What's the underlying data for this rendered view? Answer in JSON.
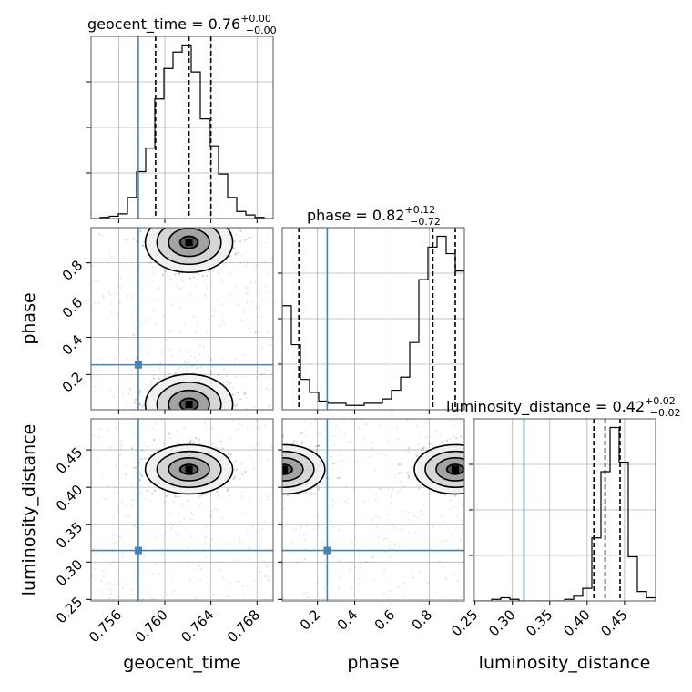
{
  "chart_data": {
    "type": "corner",
    "parameters": [
      "geocent_time",
      "phase",
      "luminosity_distance"
    ],
    "xlabels": [
      "geocent_time",
      "phase",
      "luminosity_distance"
    ],
    "ylabels": [
      "phase",
      "luminosity_distance"
    ],
    "titles": [
      {
        "param": "geocent_time",
        "text": "geocent_time = 0.76",
        "median": 0.76,
        "plus": "+0.00",
        "minus": "−0.00"
      },
      {
        "param": "phase",
        "text": "phase = 0.82",
        "median": 0.82,
        "plus": "+0.12",
        "minus": "−0.72"
      },
      {
        "param": "luminosity_distance",
        "text": "luminosity_distance = 0.42",
        "median": 0.42,
        "plus": "+0.02",
        "minus": "−0.02"
      }
    ],
    "ranges": {
      "geocent_time": [
        0.7536,
        0.7694
      ],
      "phase": [
        0.011,
        0.989
      ],
      "luminosity_distance": [
        0.248,
        0.4915
      ]
    },
    "ticks": {
      "geocent_time": [
        "0.756",
        "0.760",
        "0.764",
        "0.768"
      ],
      "phase": [
        "0.2",
        "0.4",
        "0.6",
        "0.8"
      ],
      "luminosity_distance": [
        "0.25",
        "0.30",
        "0.35",
        "0.40",
        "0.45"
      ]
    },
    "truths": {
      "geocent_time": 0.7577,
      "phase": 0.2525,
      "luminosity_distance": 0.3155
    },
    "quantiles": {
      "geocent_time": [
        0.7592,
        0.7621,
        0.764
      ],
      "phase": [
        0.1,
        0.82,
        0.94
      ],
      "luminosity_distance": [
        0.409,
        0.424,
        0.444
      ]
    },
    "histograms": {
      "geocent_time": [
        0,
        1,
        2,
        4,
        18,
        40,
        60,
        102,
        128,
        142,
        148,
        125,
        85,
        62,
        38,
        18,
        6,
        3,
        1,
        0
      ],
      "phase": [
        48,
        30,
        14,
        8,
        4,
        3,
        3,
        2,
        2,
        3,
        3,
        5,
        9,
        15,
        31,
        60,
        75,
        80,
        72,
        64
      ],
      "luminosity_distance": [
        0,
        0,
        1,
        2,
        1,
        0,
        0,
        0,
        0,
        0,
        1,
        3,
        8,
        40,
        82,
        110,
        88,
        28,
        6,
        2
      ]
    },
    "contour_peaks": {
      "phase_vs_geocent_time": [
        {
          "x": 0.7621,
          "y": 0.91
        },
        {
          "x": 0.7621,
          "y": 0.04
        }
      ],
      "luminosity_distance_vs_geocent_time": [
        {
          "x": 0.7621,
          "y": 0.424
        }
      ],
      "luminosity_distance_vs_phase": [
        {
          "x": 0.94,
          "y": 0.424
        },
        {
          "x": 0.02,
          "y": 0.424
        }
      ]
    },
    "grid": true
  }
}
